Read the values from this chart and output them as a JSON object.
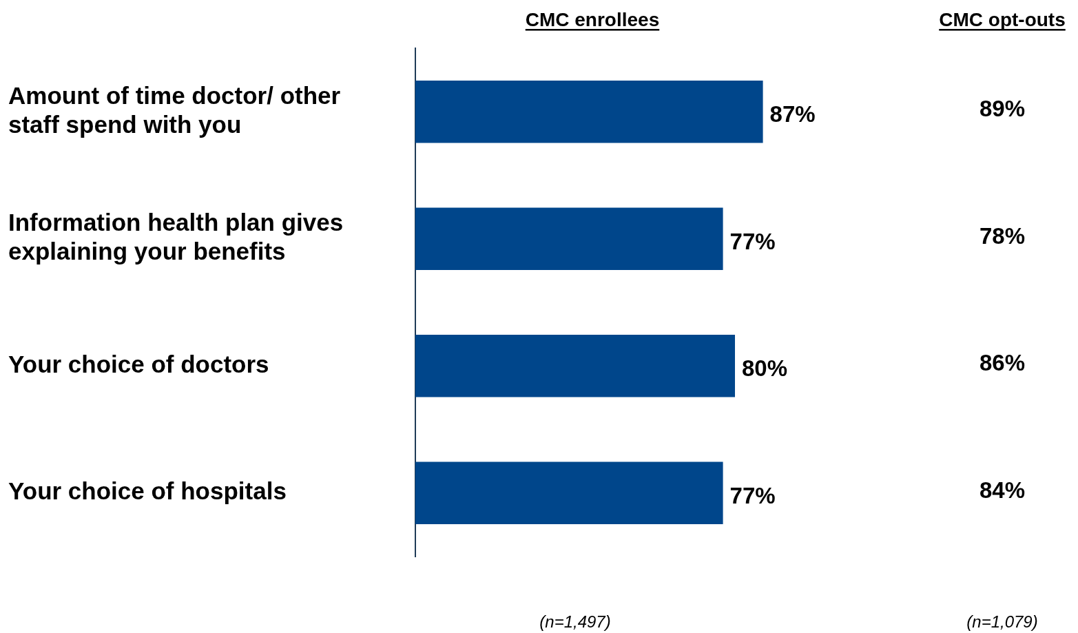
{
  "chart_data": {
    "type": "bar",
    "orientation": "horizontal",
    "categories": [
      "Amount of time doctor/ other staff spend with you",
      "Information health plan gives explaining your benefits",
      "Your choice of doctors",
      "Your choice of hospitals"
    ],
    "series": [
      {
        "name": "CMC enrollees",
        "color": "#00468b",
        "values": [
          87,
          77,
          80,
          77
        ],
        "value_labels": [
          "87%",
          "77%",
          "80%",
          "77%"
        ]
      }
    ],
    "tick_labels": false,
    "annotations": [
      "CMC opt-outs",
      "89%",
      "78%",
      "86%",
      "84%",
      "(n=1,497)",
      "(n=1,079)"
    ]
  }
}
